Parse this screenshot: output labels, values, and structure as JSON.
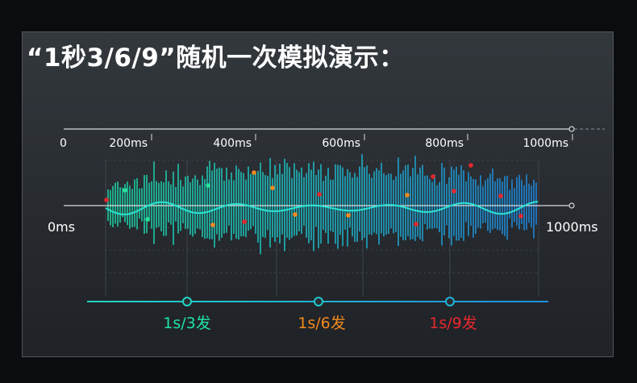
{
  "title": "“1秒3/6/9”随机一次模拟演示：",
  "timeline": {
    "start_label": "0",
    "ticks": [
      "200ms",
      "400ms",
      "600ms",
      "800ms",
      "1000ms"
    ]
  },
  "wave": {
    "left_label": "0ms",
    "right_label": "1000ms"
  },
  "rates": [
    {
      "label": "1s/3发",
      "color": "#1fe3a4"
    },
    {
      "label": "1s/6发",
      "color": "#f28a1e"
    },
    {
      "label": "1s/9发",
      "color": "#e8282e"
    }
  ],
  "colors": {
    "wave_green": "#1dd6a6",
    "wave_blue": "#1f8fe0",
    "line": "#d8dadc",
    "dot_green": "#27e39a",
    "dot_orange": "#f28a1e",
    "dot_red": "#e8262c",
    "timeline_cyan": "#1ec4dc"
  }
}
